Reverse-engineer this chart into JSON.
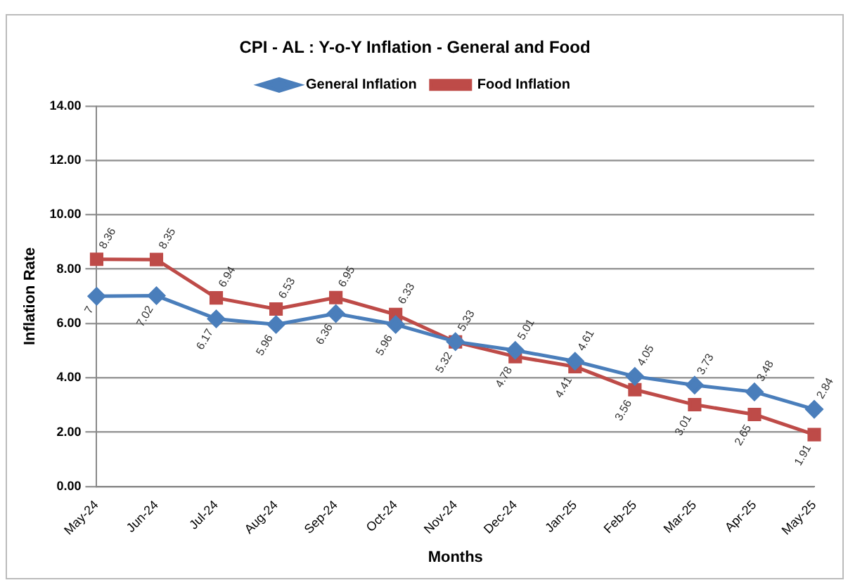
{
  "chart_data": {
    "type": "line",
    "title": "CPI - AL : Y-o-Y Inflation - General and Food",
    "xlabel": "Months",
    "ylabel": "Inflation Rate",
    "categories": [
      "May-24",
      "Jun-24",
      "Jul-24",
      "Aug-24",
      "Sep-24",
      "Oct-24",
      "Nov-24",
      "Dec-24",
      "Jan-25",
      "Feb-25",
      "Mar-25",
      "Apr-25",
      "May-25"
    ],
    "series": [
      {
        "name": "General Inflation",
        "color": "#4a7ebb",
        "marker": "diamond",
        "values": [
          7,
          7.02,
          6.17,
          5.96,
          6.36,
          5.96,
          5.33,
          5.01,
          4.61,
          4.05,
          3.73,
          3.48,
          2.84
        ]
      },
      {
        "name": "Food Inflation",
        "color": "#be4b48",
        "marker": "square",
        "values": [
          8.36,
          8.35,
          6.94,
          6.53,
          6.95,
          6.33,
          5.32,
          4.78,
          4.41,
          3.56,
          3.01,
          2.65,
          1.91
        ]
      }
    ],
    "ylim": [
      0,
      14
    ],
    "yticks": [
      {
        "value": 0,
        "label": "0.00"
      },
      {
        "value": 2,
        "label": "2.00"
      },
      {
        "value": 4,
        "label": "4.00"
      },
      {
        "value": 6,
        "label": "6.00"
      },
      {
        "value": 8,
        "label": "8.00"
      },
      {
        "value": 10,
        "label": "10.00"
      },
      {
        "value": 12,
        "label": "12.00"
      },
      {
        "value": 14,
        "label": "14.00"
      }
    ],
    "grid": "y",
    "legend": "top",
    "data_labels": true
  }
}
